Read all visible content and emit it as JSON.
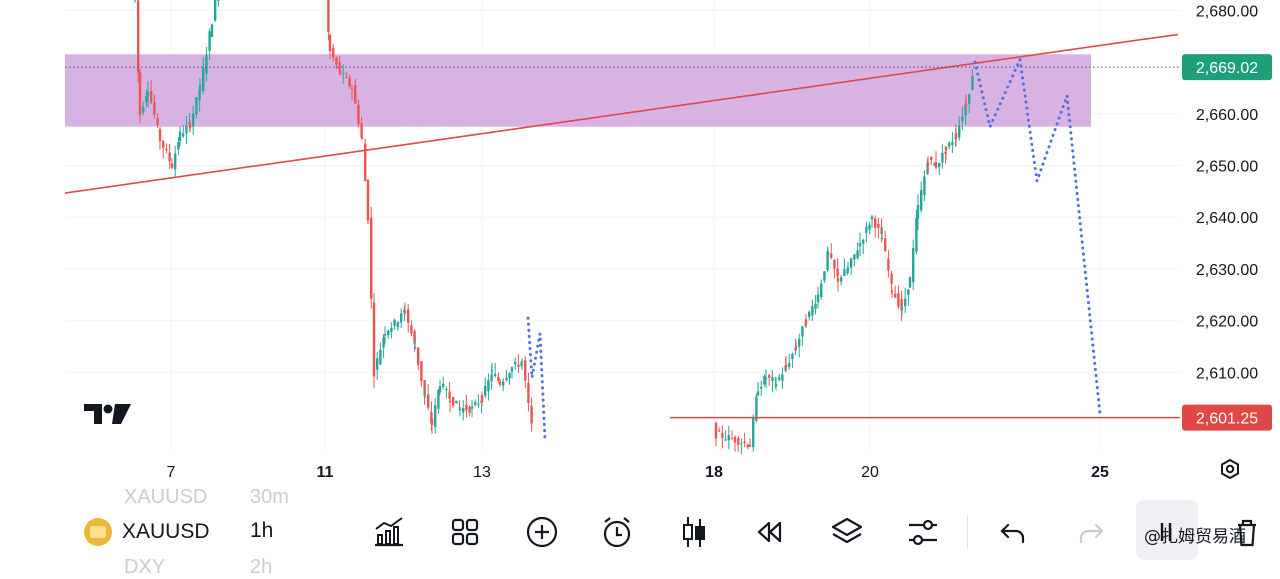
{
  "chart_data": {
    "type": "candlestick",
    "y_axis_labels": [
      "2,680.00",
      "2,669.02",
      "2,660.00",
      "2,650.00",
      "2,640.00",
      "2,630.00",
      "2,620.00",
      "2,610.00",
      "2,601.25"
    ],
    "ylim": [
      2595,
      2682
    ],
    "x_axis_labels": [
      "7",
      "11",
      "13",
      "18",
      "20",
      "25"
    ],
    "current_price": 2669.02,
    "support_level": 2601.25,
    "resistance_zone": [
      2657.5,
      2671.5
    ],
    "trendline": {
      "start": {
        "x": "6",
        "y": 2646.6
      },
      "end": {
        "x": "25",
        "y": 2673.2
      }
    },
    "projected_path_right": [
      {
        "x": "22",
        "y": 2670.0
      },
      {
        "x": "22.5",
        "y": 2657.5
      },
      {
        "x": "23.5",
        "y": 2670.5
      },
      {
        "x": "24",
        "y": 2647.0
      },
      {
        "x": "24.5",
        "y": 2663.5
      },
      {
        "x": "25",
        "y": 2602.0
      }
    ],
    "projected_path_left": [
      {
        "x": "13.8",
        "y": 2620.5
      },
      {
        "x": "14",
        "y": 2609.0
      },
      {
        "x": "14.2",
        "y": 2617.5
      },
      {
        "x": "14.4",
        "y": 2597.0
      }
    ],
    "colors": {
      "up": "#26a69a",
      "down": "#ef5350",
      "zone": "#cf9fdd",
      "trendline": "#e04848",
      "projection": "#4f70e0",
      "current_price_tag": "#1f9f78",
      "support_tag": "#e04848"
    }
  },
  "toolbar": {
    "symbol": "XAUUSD",
    "timeframe": "1h",
    "ghost_top_symbol": "XAUUSD",
    "ghost_top_tf": "30m",
    "ghost_bottom_symbol": "DXY",
    "ghost_bottom_tf": "2h",
    "watermark": "@扎姆贸易酒"
  }
}
